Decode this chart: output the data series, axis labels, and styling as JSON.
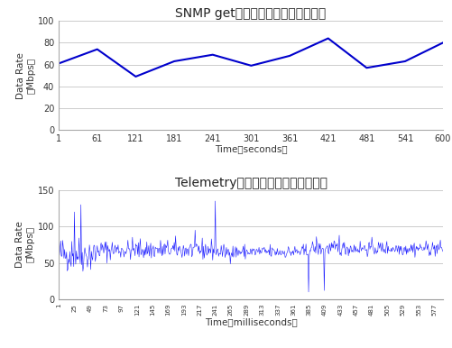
{
  "title1": "SNMP get方式下分钟级流量统计查询",
  "title2": "Telemetry方式下亚秒级流量统计上报",
  "ylabel1": "Data Rate\n（Mbps）",
  "ylabel2": "Data Rate\n（Mbps）",
  "xlabel1": "Time（seconds）",
  "xlabel2": "Time（milliseconds）",
  "snmp_x": [
    1,
    61,
    121,
    181,
    241,
    301,
    361,
    421,
    481,
    541,
    600
  ],
  "snmp_y": [
    61,
    74,
    49,
    63,
    69,
    59,
    68,
    84,
    57,
    63,
    80
  ],
  "snmp_xticks": [
    1,
    61,
    121,
    181,
    241,
    301,
    361,
    421,
    481,
    541,
    600
  ],
  "snmp_ylim": [
    0,
    100
  ],
  "snmp_yticks": [
    0,
    20,
    40,
    60,
    80,
    100
  ],
  "tel_xticks": [
    1,
    25,
    49,
    73,
    97,
    121,
    145,
    169,
    193,
    217,
    241,
    265,
    289,
    313,
    337,
    361,
    385,
    409,
    433,
    457,
    481,
    505,
    529,
    553,
    577
  ],
  "tel_xlim": [
    1,
    590
  ],
  "tel_ylim": [
    0,
    150
  ],
  "tel_yticks": [
    0,
    50,
    100,
    150
  ],
  "bg_color": "#ffffff",
  "line_color1": "#0000cc",
  "line_color2": "#0000ff",
  "grid_color": "#cccccc",
  "title_fontsize": 10,
  "axis_fontsize": 7.5,
  "ylabel_fontsize": 7.5,
  "tick_fontsize": 7
}
